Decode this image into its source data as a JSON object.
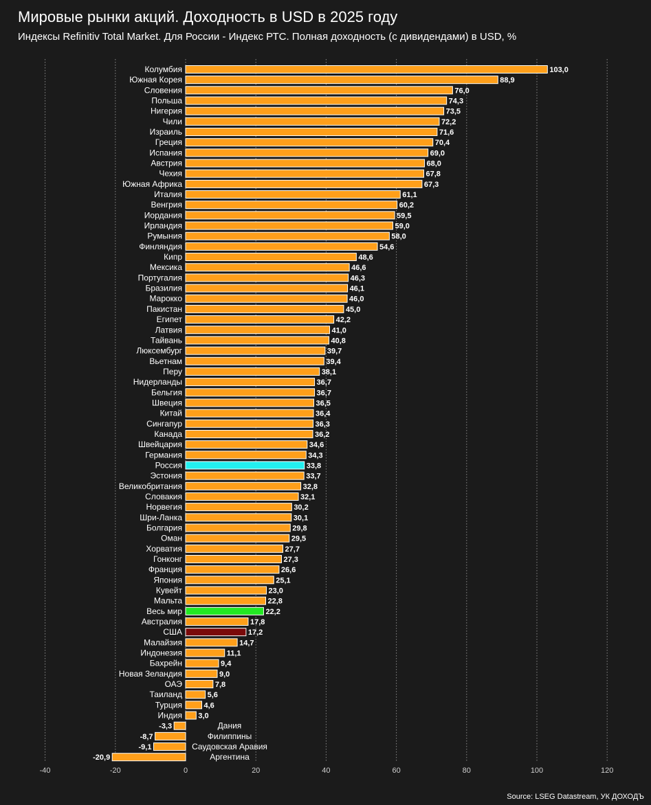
{
  "header": {
    "title": "Мировые рынки акций. Доходность в USD в 2025 году",
    "subtitle": "Индексы Refinitiv Total Market. Для России - Индекс РТС. Полная доходность (с дивидендами) в USD, %"
  },
  "footer": {
    "source": "Source: LSEG Datastream, УК ДОХОДЪ"
  },
  "colors": {
    "background": "#1b1b1b",
    "bar_default": "#ff9f1a",
    "bar_russia": "#22f0f0",
    "bar_world": "#22e822",
    "bar_usa": "#7a0a0a",
    "bar_border": "#ffffff",
    "grid": "#8a8a8a",
    "text": "#ffffff",
    "tick_text": "#cfcfcf"
  },
  "chart_data": {
    "type": "bar",
    "orientation": "horizontal",
    "title": "Мировые рынки акций. Доходность в USD в 2025 году",
    "xlabel": "",
    "ylabel": "",
    "xlim": [
      -40,
      120
    ],
    "xticks": [
      -40,
      -20,
      0,
      20,
      40,
      60,
      80,
      100,
      120
    ],
    "xtick_labels": [
      "-40",
      "-20",
      "0",
      "20",
      "40",
      "60",
      "80",
      "100",
      "120"
    ],
    "grid": "vertical dotted",
    "decimal_separator": ",",
    "categories": [
      "Колумбия",
      "Южная Корея",
      "Словения",
      "Польша",
      "Нигерия",
      "Чили",
      "Израиль",
      "Греция",
      "Испания",
      "Австрия",
      "Чехия",
      "Южная Африка",
      "Италия",
      "Венгрия",
      "Иордания",
      "Ирландия",
      "Румыния",
      "Финляндия",
      "Кипр",
      "Мексика",
      "Португалия",
      "Бразилия",
      "Марокко",
      "Пакистан",
      "Египет",
      "Латвия",
      "Тайвань",
      "Люксембург",
      "Вьетнам",
      "Перу",
      "Нидерланды",
      "Бельгия",
      "Швеция",
      "Китай",
      "Сингапур",
      "Канада",
      "Швейцария",
      "Германия",
      "Россия",
      "Эстония",
      "Великобритания",
      "Словакия",
      "Норвегия",
      "Шри-Ланка",
      "Болгария",
      "Оман",
      "Хорватия",
      "Гонконг",
      "Франция",
      "Япония",
      "Кувейт",
      "Мальта",
      "Весь мир",
      "Австралия",
      "США",
      "Малайзия",
      "Индонезия",
      "Бахрейн",
      "Новая Зеландия",
      "ОАЭ",
      "Таиланд",
      "Турция",
      "Индия",
      "Дания",
      "Филиппины",
      "Саудовская Аравия",
      "Аргентина"
    ],
    "values": [
      103.0,
      88.9,
      76.0,
      74.3,
      73.5,
      72.2,
      71.6,
      70.4,
      69.0,
      68.0,
      67.8,
      67.3,
      61.1,
      60.2,
      59.5,
      59.0,
      58.0,
      54.6,
      48.6,
      46.6,
      46.3,
      46.1,
      46.0,
      45.0,
      42.2,
      41.0,
      40.8,
      39.7,
      39.4,
      38.1,
      36.7,
      36.7,
      36.5,
      36.4,
      36.3,
      36.2,
      34.6,
      34.3,
      33.8,
      33.7,
      32.8,
      32.1,
      30.2,
      30.1,
      29.8,
      29.5,
      27.7,
      27.3,
      26.6,
      25.1,
      23.0,
      22.8,
      22.2,
      17.8,
      17.2,
      14.7,
      11.1,
      9.4,
      9.0,
      7.8,
      5.6,
      4.6,
      3.0,
      -3.3,
      -8.7,
      -9.1,
      -20.9
    ],
    "value_labels": [
      "103,0",
      "88,9",
      "76,0",
      "74,3",
      "73,5",
      "72,2",
      "71,6",
      "70,4",
      "69,0",
      "68,0",
      "67,8",
      "67,3",
      "61,1",
      "60,2",
      "59,5",
      "59,0",
      "58,0",
      "54,6",
      "48,6",
      "46,6",
      "46,3",
      "46,1",
      "46,0",
      "45,0",
      "42,2",
      "41,0",
      "40,8",
      "39,7",
      "39,4",
      "38,1",
      "36,7",
      "36,7",
      "36,5",
      "36,4",
      "36,3",
      "36,2",
      "34,6",
      "34,3",
      "33,8",
      "33,7",
      "32,8",
      "32,1",
      "30,2",
      "30,1",
      "29,8",
      "29,5",
      "27,7",
      "27,3",
      "26,6",
      "25,1",
      "23,0",
      "22,8",
      "22,2",
      "17,8",
      "17,2",
      "14,7",
      "11,1",
      "9,4",
      "9,0",
      "7,8",
      "5,6",
      "4,6",
      "3,0",
      "-3,3",
      "-8,7",
      "-9,1",
      "-20,9"
    ],
    "highlights": {
      "Россия": "bar_russia",
      "Весь мир": "bar_world",
      "США": "bar_usa"
    }
  }
}
